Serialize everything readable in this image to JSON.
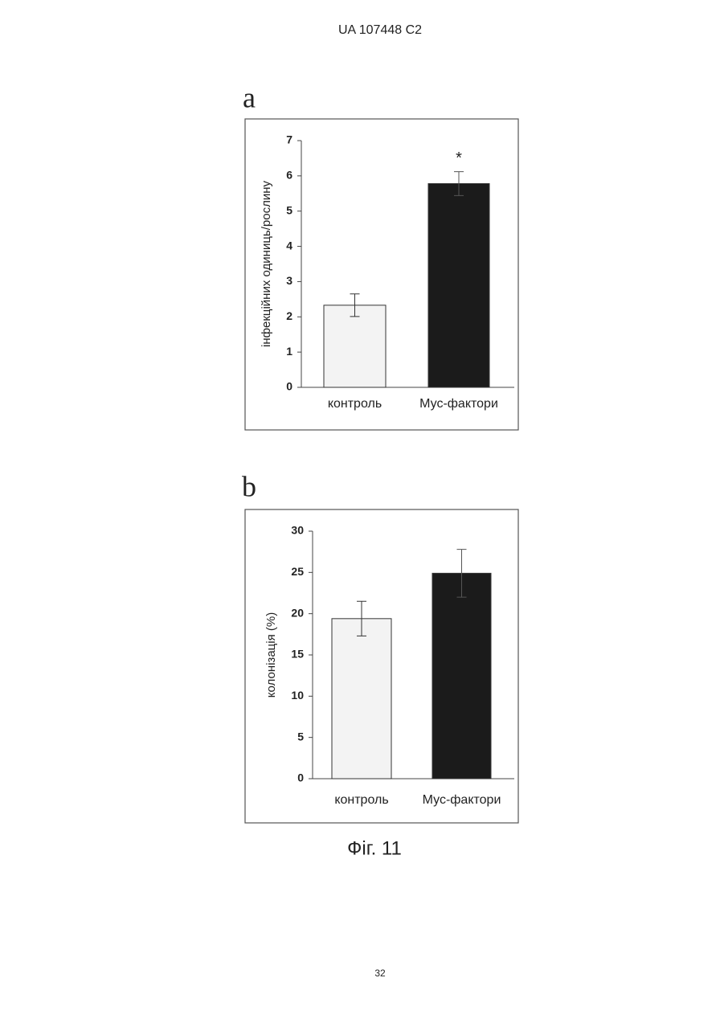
{
  "header": "UA   107448   C2",
  "figure_caption": "Фіг. 11",
  "page_number": "32",
  "chart_data": [
    {
      "type": "bar",
      "label": "a",
      "y_label": "інфекційних одиниць/рослину",
      "categories": [
        "контроль",
        "Мус-фактори"
      ],
      "series": [
        {
          "values": [
            2.33,
            5.78
          ],
          "errors": [
            0.32,
            0.34
          ],
          "colors": [
            "#f3f3f3",
            "#1b1b1b"
          ]
        }
      ],
      "annotations": [
        null,
        "*"
      ],
      "ylim": [
        0,
        7
      ],
      "yticks": [
        0,
        1,
        2,
        3,
        4,
        5,
        6,
        7
      ]
    },
    {
      "type": "bar",
      "label": "b",
      "y_label": "колонізація  (%)",
      "categories": [
        "контроль",
        "Мус-фактори"
      ],
      "series": [
        {
          "values": [
            19.4,
            24.9
          ],
          "errors": [
            2.1,
            2.9
          ],
          "colors": [
            "#f3f3f3",
            "#1b1b1b"
          ]
        }
      ],
      "ylim": [
        0,
        30
      ],
      "yticks": [
        0,
        5,
        10,
        15,
        20,
        25,
        30
      ]
    }
  ]
}
